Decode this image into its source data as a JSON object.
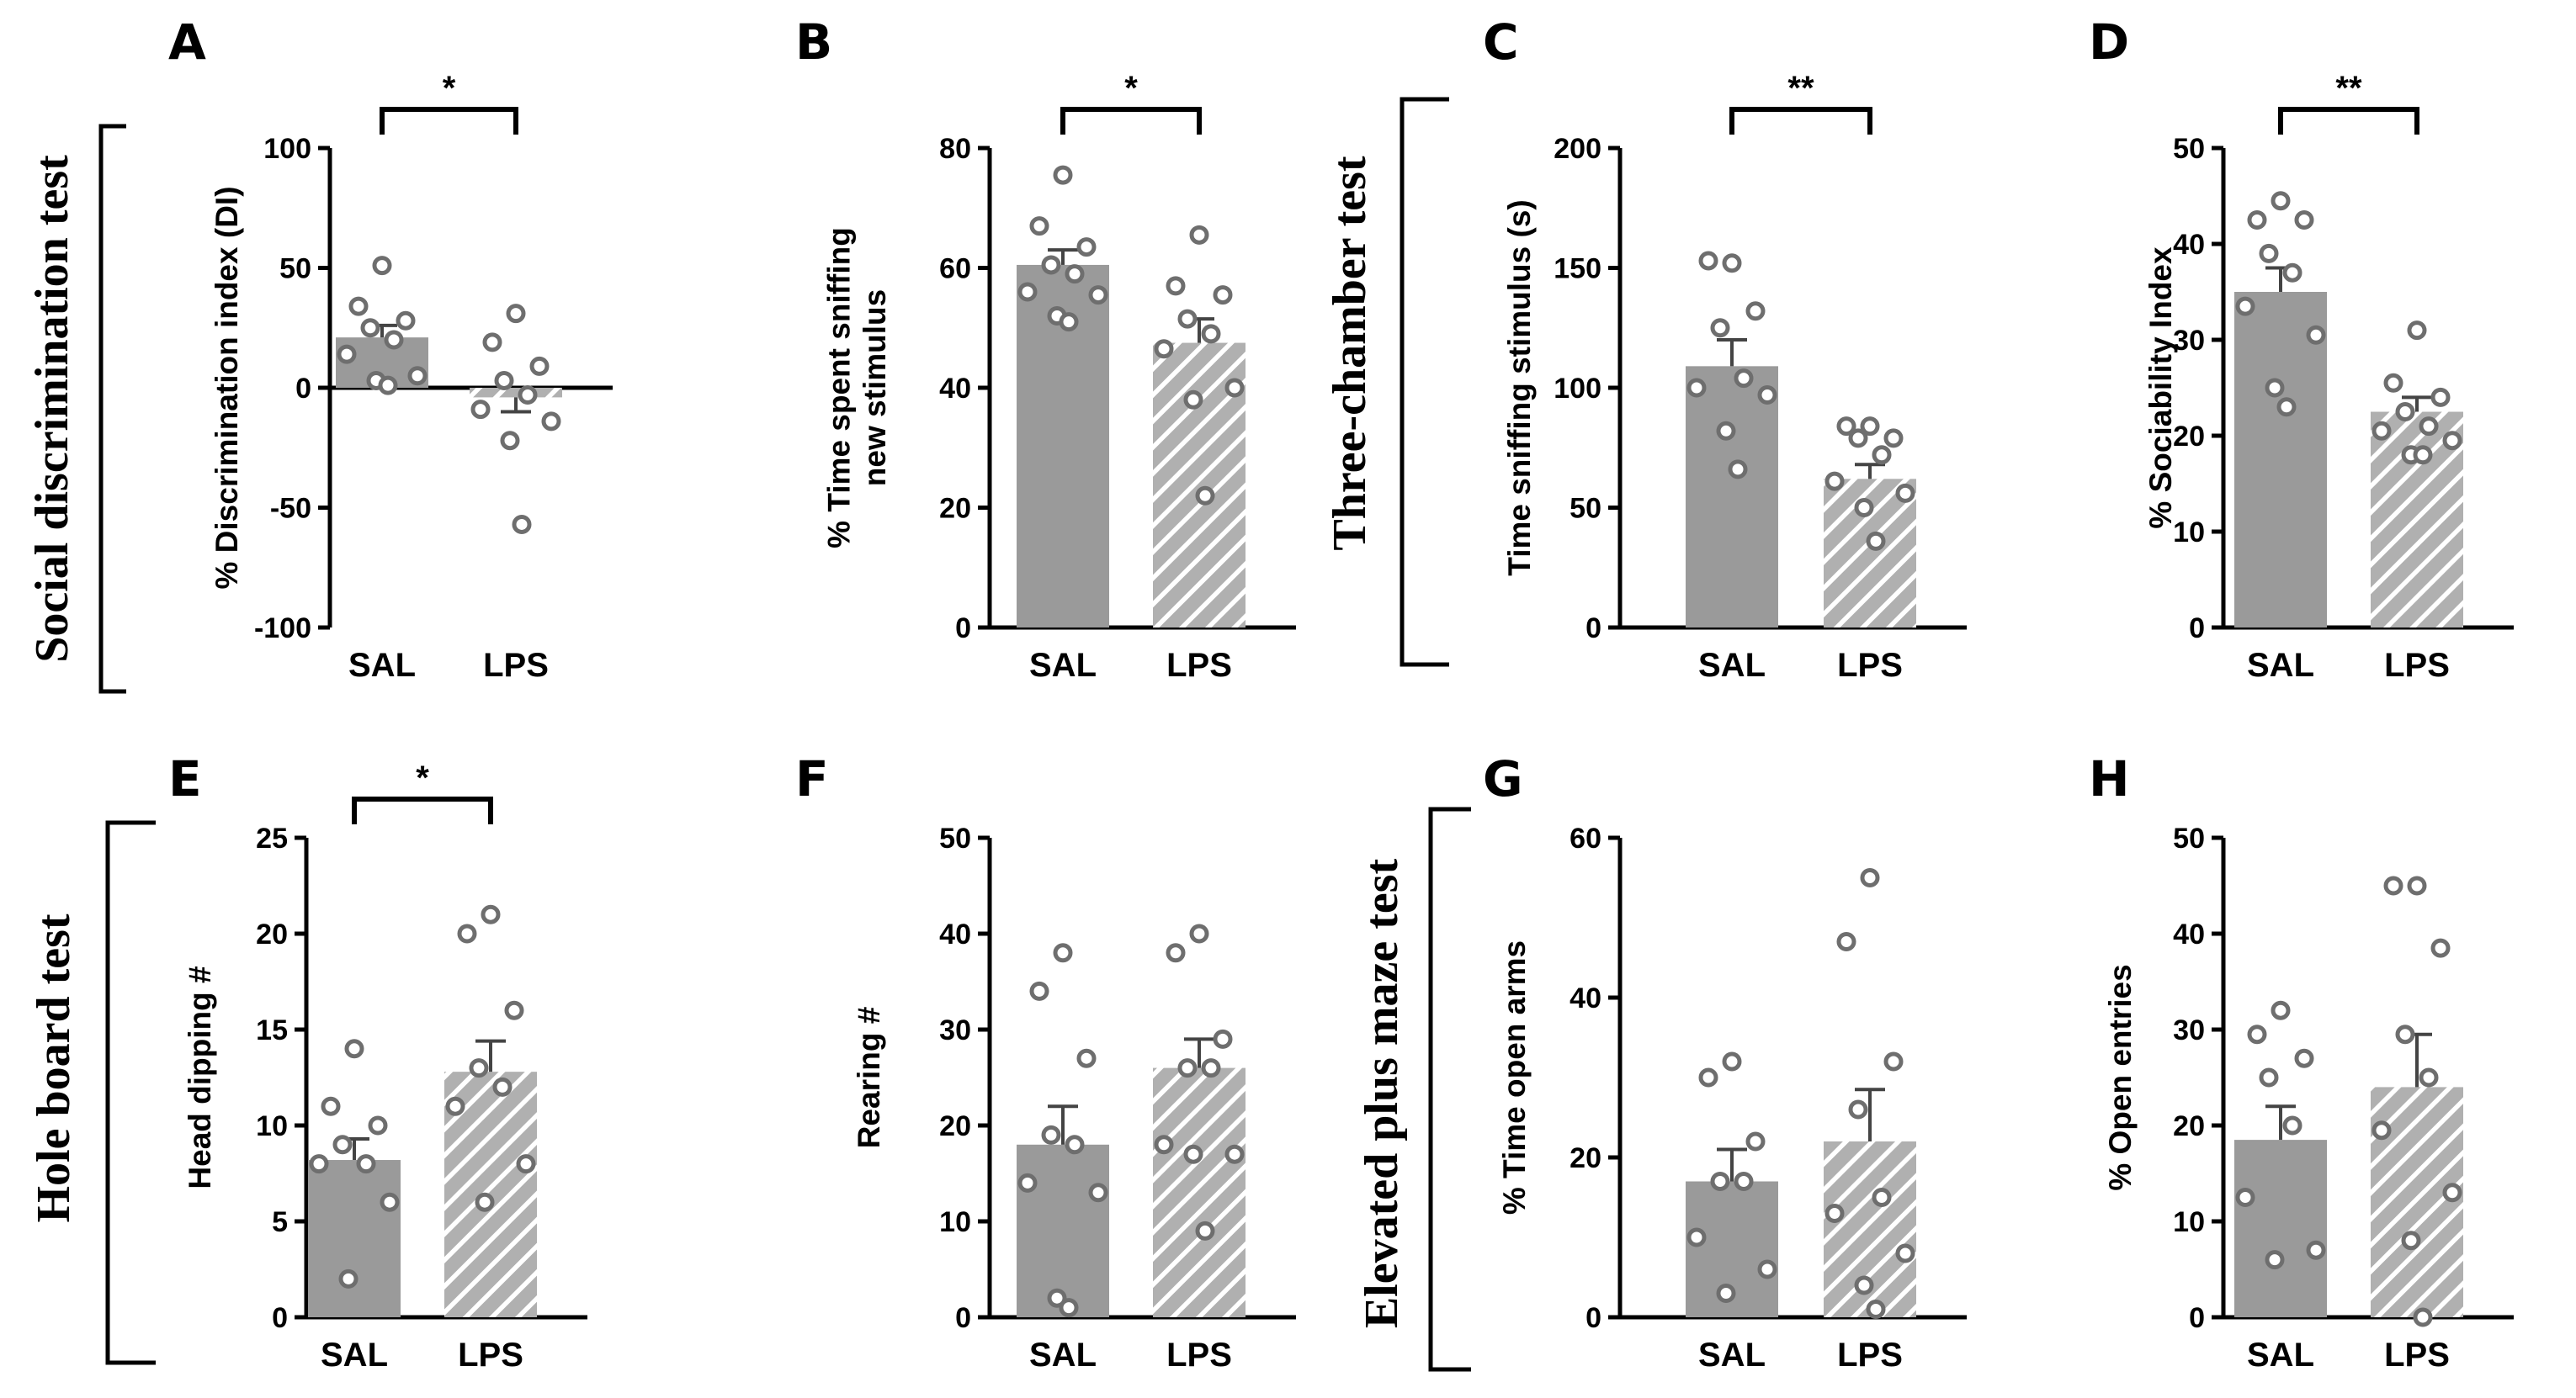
{
  "colors": {
    "sal_bar": "#9a9a9a",
    "lps_bar": "#b0b0b0",
    "lps_hatch": "#ffffff",
    "point_stroke": "#6e6e6e",
    "axis": "#000000"
  },
  "test_labels": [
    "Social discrimination test",
    "Three-chamber test",
    "Hole board test",
    "Elevated plus maze test"
  ],
  "chart_data": [
    {
      "type": "bar",
      "panel": "A",
      "ylabel": "% Discrimination index (DI)",
      "ylim": [
        -100,
        100
      ],
      "yticks": [
        100,
        50,
        0,
        -50,
        -100
      ],
      "categories": [
        "SAL",
        "LPS"
      ],
      "values": [
        21,
        -4
      ],
      "sem": [
        5,
        6
      ],
      "points": [
        [
          51,
          34,
          28,
          25,
          20,
          14,
          5,
          3,
          1
        ],
        [
          31,
          19,
          9,
          3,
          -3,
          -9,
          -14,
          -22,
          -57
        ]
      ],
      "zero_line": true,
      "significance": "*"
    },
    {
      "type": "bar",
      "panel": "B",
      "ylabel": "% Time spent sniffing new stimulus",
      "ylim": [
        0,
        80
      ],
      "yticks": [
        80,
        60,
        40,
        20,
        0
      ],
      "categories": [
        "SAL",
        "LPS"
      ],
      "values": [
        60.5,
        47.5
      ],
      "sem": [
        2.5,
        4
      ],
      "points": [
        [
          75.5,
          67,
          63.5,
          60.5,
          59,
          56,
          55.5,
          52,
          51
        ],
        [
          65.5,
          57,
          55.5,
          51.5,
          49,
          46.5,
          40,
          38,
          22
        ]
      ],
      "significance": "*"
    },
    {
      "type": "bar",
      "panel": "C",
      "ylabel": "Time sniffing stimulus (s)",
      "ylim": [
        0,
        200
      ],
      "yticks": [
        200,
        150,
        100,
        50,
        0
      ],
      "categories": [
        "SAL",
        "LPS"
      ],
      "values": [
        109,
        62
      ],
      "sem": [
        11,
        6
      ],
      "points": [
        [
          152,
          153,
          132,
          125,
          104,
          100,
          97,
          82,
          66
        ],
        [
          84,
          84,
          79,
          79,
          72,
          61,
          56,
          50,
          36
        ]
      ],
      "significance": "**"
    },
    {
      "type": "bar",
      "panel": "D",
      "ylabel": "% Sociability Index",
      "ylim": [
        0,
        50
      ],
      "yticks": [
        50,
        40,
        30,
        20,
        10,
        0
      ],
      "categories": [
        "SAL",
        "LPS"
      ],
      "values": [
        35,
        22.5
      ],
      "sem": [
        2.5,
        1.5
      ],
      "points": [
        [
          44.5,
          42.5,
          42.5,
          39,
          37,
          33.5,
          30.5,
          25,
          23
        ],
        [
          31,
          25.5,
          24,
          22.5,
          21,
          20.5,
          19.5,
          18,
          18
        ]
      ],
      "significance": "**"
    },
    {
      "type": "bar",
      "panel": "E",
      "ylabel": "Head dipping #",
      "ylim": [
        0,
        25
      ],
      "yticks": [
        25,
        20,
        15,
        10,
        5,
        0
      ],
      "categories": [
        "SAL",
        "LPS"
      ],
      "values": [
        8.2,
        12.8
      ],
      "sem": [
        1.1,
        1.6
      ],
      "points": [
        [
          14,
          11,
          10,
          9,
          8,
          8,
          6,
          2
        ],
        [
          21,
          20,
          16,
          13,
          12,
          11,
          8,
          6
        ]
      ],
      "significance": "*"
    },
    {
      "type": "bar",
      "panel": "F",
      "ylabel": "Rearing #",
      "ylim": [
        0,
        50
      ],
      "yticks": [
        50,
        40,
        30,
        20,
        10,
        0
      ],
      "categories": [
        "SAL",
        "LPS"
      ],
      "values": [
        18,
        26
      ],
      "sem": [
        4,
        3
      ],
      "points": [
        [
          38,
          34,
          27,
          19,
          18,
          14,
          13,
          2,
          1
        ],
        [
          40,
          38,
          29,
          26,
          26,
          18,
          17,
          17,
          9
        ]
      ],
      "significance": ""
    },
    {
      "type": "bar",
      "panel": "G",
      "ylabel": "% Time open arms",
      "ylim": [
        0,
        60
      ],
      "yticks": [
        60,
        40,
        20,
        0
      ],
      "categories": [
        "SAL",
        "LPS"
      ],
      "values": [
        17,
        22
      ],
      "sem": [
        4,
        6.5
      ],
      "points": [
        [
          32,
          30,
          22,
          17,
          17,
          10,
          6,
          3
        ],
        [
          55,
          47,
          32,
          26,
          15,
          13,
          8,
          4,
          1
        ]
      ],
      "significance": ""
    },
    {
      "type": "bar",
      "panel": "H",
      "ylabel": "% Open entries",
      "ylim": [
        0,
        50
      ],
      "yticks": [
        50,
        40,
        30,
        20,
        10,
        0
      ],
      "categories": [
        "SAL",
        "LPS"
      ],
      "values": [
        18.5,
        24
      ],
      "sem": [
        3.5,
        5.5
      ],
      "points": [
        [
          32,
          29.5,
          27,
          25,
          20,
          12.5,
          7,
          6
        ],
        [
          45,
          45,
          38.5,
          29.5,
          25,
          19.5,
          13,
          8,
          0
        ]
      ],
      "significance": ""
    }
  ]
}
